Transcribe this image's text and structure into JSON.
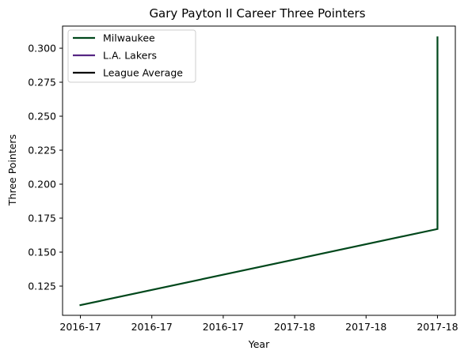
{
  "chart_data": {
    "type": "line",
    "title": "Gary Payton II Career Three Pointers",
    "xlabel": "Year",
    "ylabel": "Three Pointers",
    "x_tick_labels": [
      "2016-17",
      "2016-17",
      "2016-17",
      "2017-18",
      "2017-18",
      "2017-18"
    ],
    "y_ticks": [
      "0.125",
      "0.150",
      "0.175",
      "0.200",
      "0.225",
      "0.250",
      "0.275",
      "0.300"
    ],
    "y_tick_values": [
      0.125,
      0.15,
      0.175,
      0.2,
      0.225,
      0.25,
      0.275,
      0.3
    ],
    "xlim": [
      -0.25,
      5.25
    ],
    "ylim": [
      0.1035,
      0.3163
    ],
    "grid": false,
    "legend_placement": "upper-left",
    "series": [
      {
        "name": "Milwaukee",
        "color": "#00471B",
        "x": [
          0,
          5,
          5
        ],
        "y": [
          0.111,
          0.167,
          0.308
        ]
      },
      {
        "name": "L.A. Lakers",
        "color": "#552583",
        "x": [],
        "y": []
      },
      {
        "name": "League Average",
        "color": "#000000",
        "x": [],
        "y": []
      }
    ]
  }
}
